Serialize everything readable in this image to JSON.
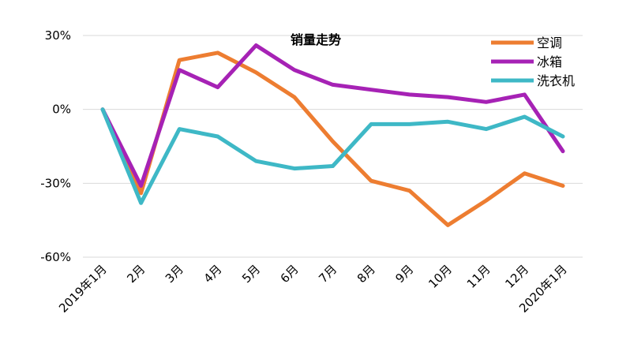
{
  "chart_data": {
    "type": "line",
    "title": "销量走势",
    "xlabel": "",
    "ylabel": "",
    "categories": [
      "2019年1月",
      "2月",
      "3月",
      "4月",
      "5月",
      "6月",
      "7月",
      "8月",
      "9月",
      "10月",
      "11月",
      "12月",
      "2020年1月"
    ],
    "yticks": [
      "30%",
      "0%",
      "-30%",
      "-60%"
    ],
    "ytick_values": [
      30,
      0,
      -30,
      -60
    ],
    "ylim": [
      -60,
      30
    ],
    "grid": true,
    "legend_position": "top-right",
    "series": [
      {
        "name": "空调",
        "color": "#ED7D31",
        "values": [
          0,
          -34,
          20,
          23,
          15,
          5,
          -13,
          -29,
          -33,
          -47,
          -37,
          -26,
          -31
        ]
      },
      {
        "name": "冰箱",
        "color": "#A622B5",
        "values": [
          0,
          -31,
          16,
          9,
          26,
          16,
          10,
          8,
          6,
          5,
          3,
          6,
          -17
        ]
      },
      {
        "name": "洗衣机",
        "color": "#3EB8C6",
        "values": [
          0,
          -38,
          -8,
          -11,
          -21,
          -24,
          -23,
          -6,
          -6,
          -5,
          -8,
          -3,
          -11
        ]
      }
    ]
  }
}
